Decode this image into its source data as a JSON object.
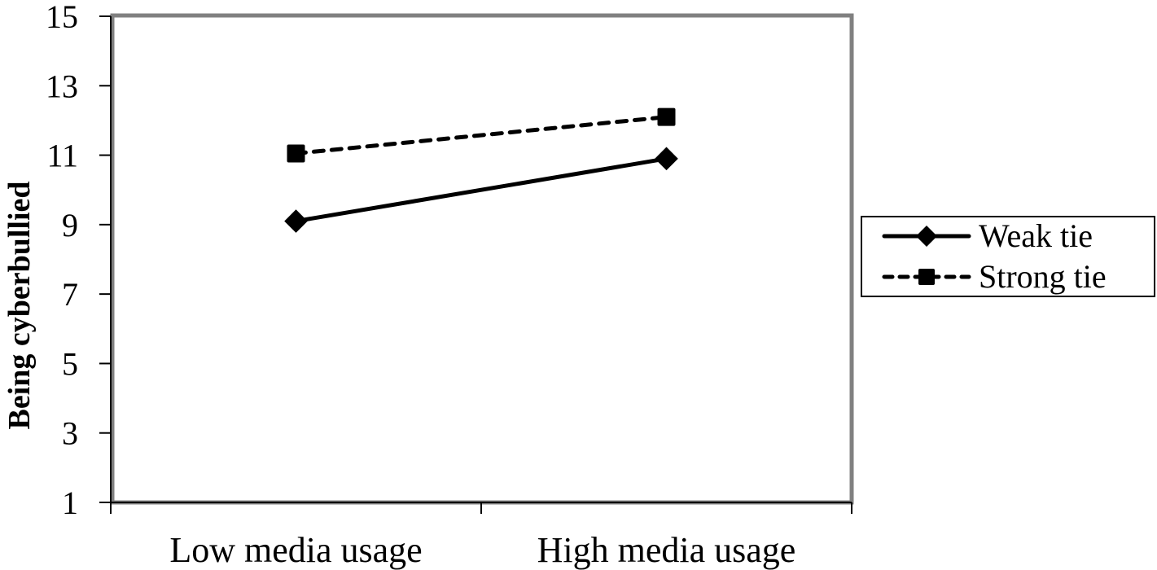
{
  "chart_data": {
    "type": "line",
    "title": "",
    "xlabel": "",
    "ylabel": "Being cyberbullied",
    "categories": [
      "Low media usage",
      "High media usage"
    ],
    "series": [
      {
        "name": "Weak tie",
        "values": [
          9.1,
          10.9
        ],
        "line_style": "solid",
        "marker": "diamond"
      },
      {
        "name": "Strong tie",
        "values": [
          11.05,
          12.1
        ],
        "line_style": "dashed",
        "marker": "square"
      }
    ],
    "ylim": [
      1,
      15
    ],
    "yticks": [
      1,
      3,
      5,
      7,
      9,
      11,
      13,
      15
    ],
    "grid": false,
    "legend_position": "right",
    "colors": {
      "series": "#000000",
      "plot_frame": "#808080",
      "axis": "#000000",
      "background": "#ffffff"
    }
  },
  "legend": {
    "items": [
      {
        "label": "Weak tie"
      },
      {
        "label": "Strong tie"
      }
    ]
  }
}
